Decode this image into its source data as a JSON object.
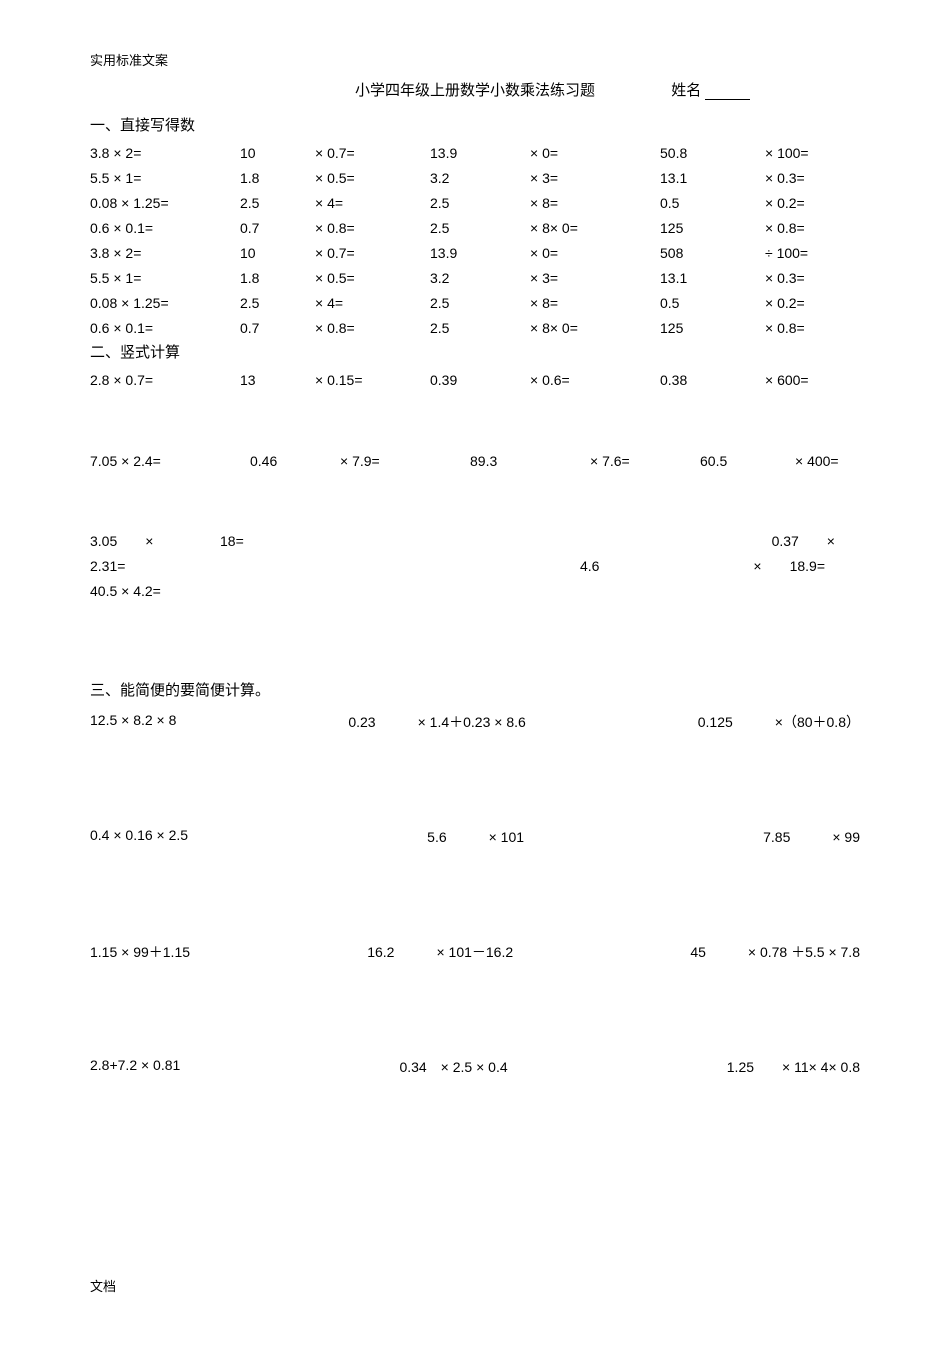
{
  "header_small": "实用标准文案",
  "title": "小学四年级上册数学小数乘法练习题",
  "name_label": "姓名",
  "section1_title": "一、直接写得数",
  "section2_title": "二、竖式计算",
  "section3_title": "三、能简便的要简便计算。",
  "footer": "文档",
  "rows": [
    {
      "c1": "3.8 × 2=",
      "c2": "10",
      "c3": "× 0.7=",
      "c4": "13.9",
      "c5": "× 0=",
      "c6": "50.8",
      "c7": "× 100="
    },
    {
      "c1": "5.5 × 1=",
      "c2": "1.8",
      "c3": "× 0.5=",
      "c4": "3.2",
      "c5": "× 3=",
      "c6": "13.1",
      "c7": "× 0.3="
    },
    {
      "c1": "0.08 × 1.25=",
      "c2": "2.5",
      "c3": "× 4=",
      "c4": "2.5",
      "c5": "× 8=",
      "c6": "0.5",
      "c7": "× 0.2="
    },
    {
      "c1": "0.6 × 0.1=",
      "c2": "0.7",
      "c3": "× 0.8=",
      "c4": "2.5",
      "c5": "× 8× 0=",
      "c6": "125",
      "c7": "× 0.8="
    },
    {
      "c1": "3.8 × 2=",
      "c2": "10",
      "c3": "× 0.7=",
      "c4": "13.9",
      "c5": "× 0=",
      "c6": "508",
      "c7": "÷ 100="
    },
    {
      "c1": "5.5 × 1=",
      "c2": "1.8",
      "c3": "× 0.5=",
      "c4": "3.2",
      "c5": "× 3=",
      "c6": "13.1",
      "c7": "× 0.3="
    },
    {
      "c1": "0.08 × 1.25=",
      "c2": "2.5",
      "c3": "× 4=",
      "c4": "2.5",
      "c5": "× 8=",
      "c6": "0.5",
      "c7": "× 0.2="
    },
    {
      "c1": "0.6 × 0.1=",
      "c2": "0.7",
      "c3": "× 0.8=",
      "c4": "2.5",
      "c5": "× 8× 0=",
      "c6": "125",
      "c7": "× 0.8="
    }
  ],
  "vrows": [
    {
      "c1": "2.8 × 0.7=",
      "c2": "13",
      "c3": "× 0.15=",
      "c4": "0.39",
      "c5": "× 0.6=",
      "c6": "0.38",
      "c7": "× 600="
    },
    {
      "c1": "7.05 × 2.4=",
      "c2": "0.46",
      "c3": "× 7.9=",
      "c4": "89.3",
      "c5": "× 7.6=",
      "c6": "60.5",
      "c7": "× 400="
    }
  ],
  "spread": {
    "l1a": "3.05　　×",
    "l1b": "18=",
    "l1c": "0.37　　×",
    "l2a": "2.31=",
    "l2b": "4.6",
    "l2c": "×　　18.9=",
    "l3a": "40.5 × 4.2="
  },
  "problems": [
    [
      "12.5 × 8.2 × 8",
      "0.23　　　× 1.4＋0.23 × 8.6",
      "0.125　　　×（80＋0.8）"
    ],
    [
      "0.4 × 0.16 × 2.5",
      "5.6　　　× 101",
      "7.85　　　× 99"
    ],
    [
      "1.15 × 99＋1.15",
      "16.2　　　× 101－16.2",
      "45　　　× 0.78 ＋5.5 × 7.8"
    ],
    [
      "2.8+7.2 × 0.81",
      "0.34　× 2.5 × 0.4",
      "1.25　　× 11× 4× 0.8"
    ]
  ]
}
